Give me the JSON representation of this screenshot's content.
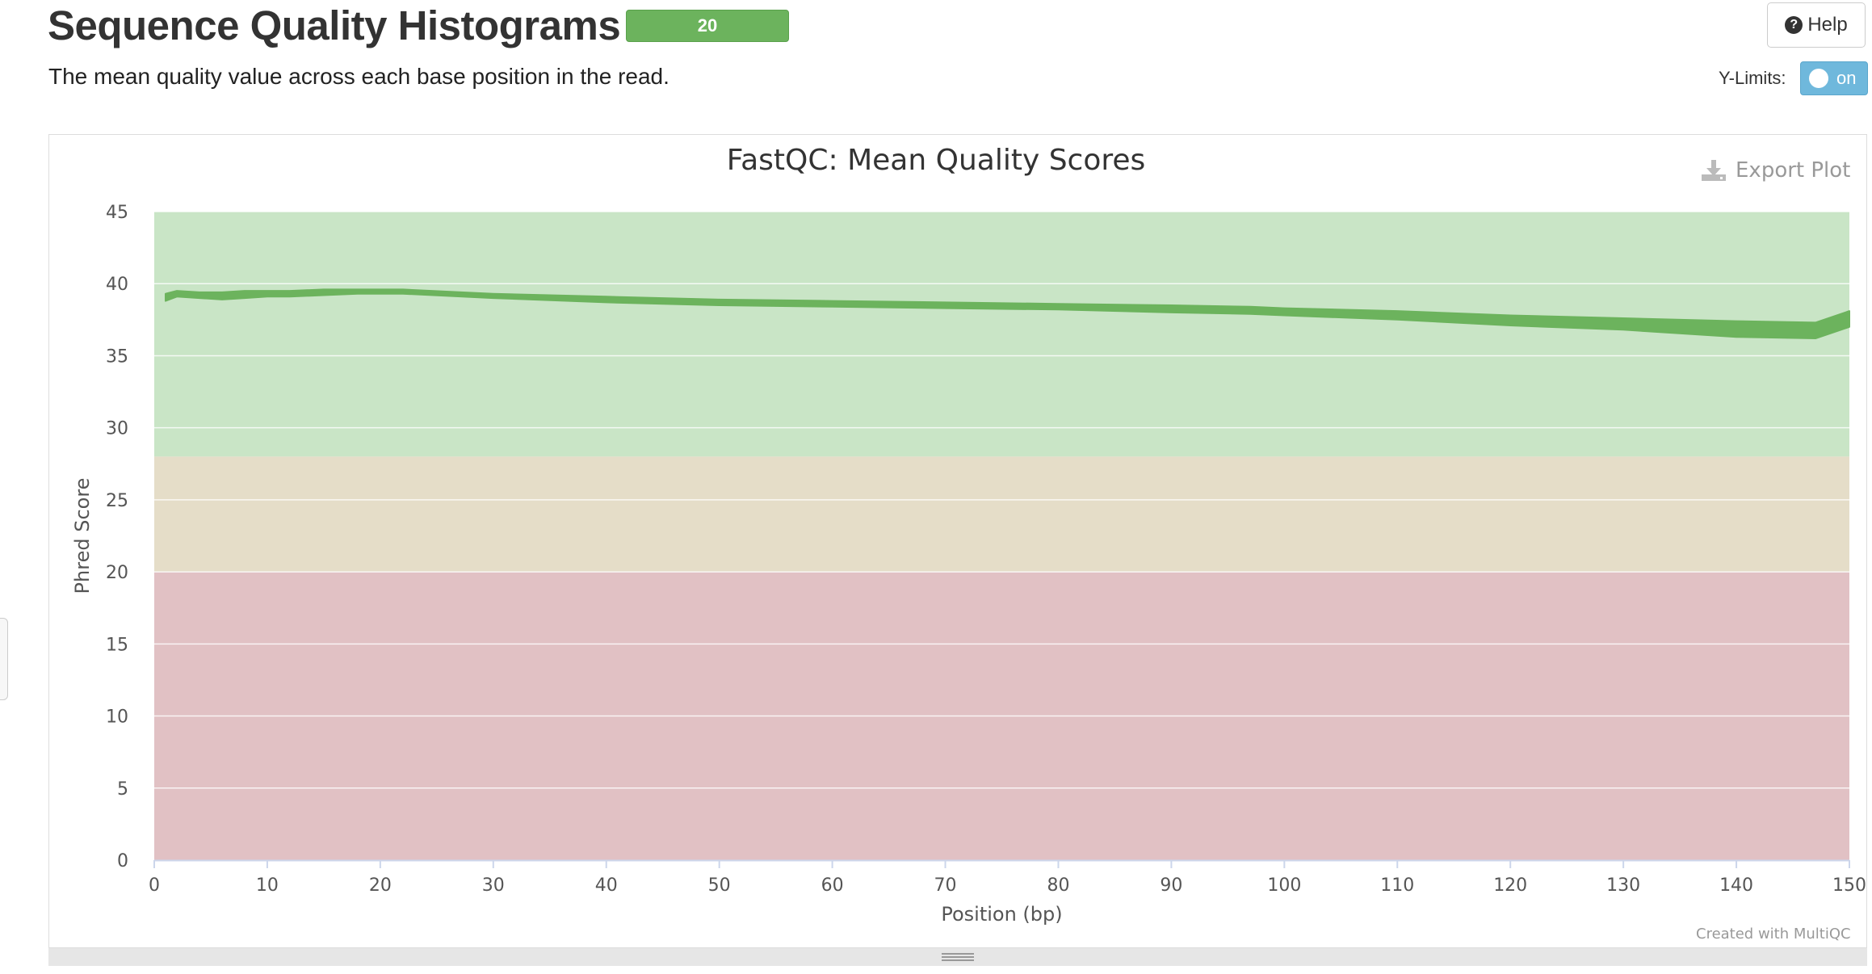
{
  "header": {
    "title": "Sequence Quality Histograms",
    "badge_count": "20",
    "description": "The mean quality value across each base position in the read.",
    "help_label": "Help",
    "ylimits_label": "Y-Limits:",
    "ylimits_toggle": "on"
  },
  "plot": {
    "export_label": "Export Plot",
    "credit": "Created with MultiQC"
  },
  "colors": {
    "badge": "#6cb35d",
    "band_good": "#c9e5c6",
    "band_warn": "#e5ddc8",
    "band_fail": "#e1c1c4",
    "series": "#6cb35d",
    "toggle": "#6fb8dc"
  },
  "chart_data": {
    "type": "area",
    "title": "FastQC: Mean Quality Scores",
    "xlabel": "Position (bp)",
    "ylabel": "Phred Score",
    "xlim": [
      0,
      150
    ],
    "ylim": [
      0,
      45
    ],
    "xticks": [
      0,
      10,
      20,
      30,
      40,
      50,
      60,
      70,
      80,
      90,
      100,
      110,
      120,
      130,
      140,
      150
    ],
    "yticks": [
      0,
      5,
      10,
      15,
      20,
      25,
      30,
      35,
      40,
      45
    ],
    "grid": true,
    "bands": [
      {
        "from": 28,
        "to": 45,
        "color": "#c9e5c6"
      },
      {
        "from": 20,
        "to": 28,
        "color": "#e5ddc8"
      },
      {
        "from": 0,
        "to": 20,
        "color": "#e1c1c4"
      }
    ],
    "series": [
      {
        "x": [
          1,
          2,
          4,
          6,
          8,
          10,
          12,
          15,
          18,
          22,
          30,
          40,
          50,
          60,
          70,
          80,
          90,
          97,
          100,
          110,
          120,
          130,
          140,
          147,
          150
        ],
        "upper": [
          39.3,
          39.5,
          39.4,
          39.4,
          39.5,
          39.5,
          39.5,
          39.6,
          39.6,
          39.6,
          39.3,
          39.1,
          38.9,
          38.8,
          38.7,
          38.6,
          38.5,
          38.4,
          38.3,
          38.1,
          37.8,
          37.6,
          37.4,
          37.3,
          38.1
        ],
        "lower": [
          38.8,
          39.1,
          39.0,
          38.9,
          39.0,
          39.1,
          39.1,
          39.2,
          39.3,
          39.3,
          39.0,
          38.7,
          38.5,
          38.4,
          38.3,
          38.2,
          38.0,
          37.9,
          37.8,
          37.5,
          37.1,
          36.8,
          36.3,
          36.2,
          37.0
        ]
      }
    ]
  }
}
